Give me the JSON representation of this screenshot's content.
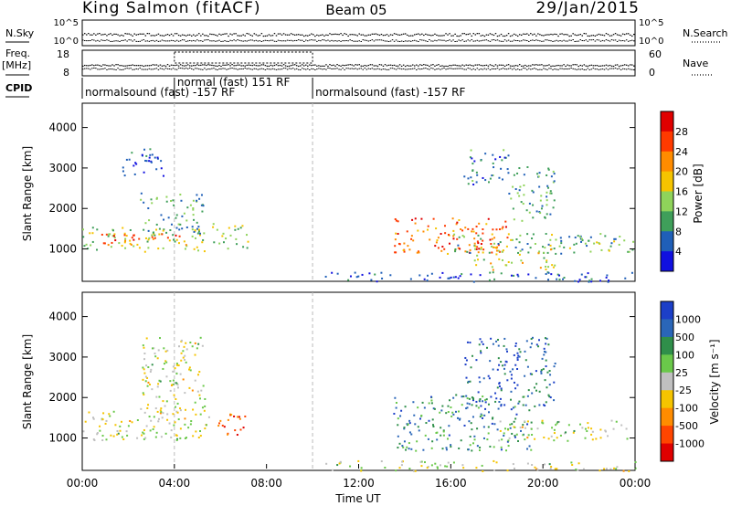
{
  "header": {
    "station": "King Salmon (fitACF)",
    "beam": "Beam 05",
    "date": "29/Jan/2015"
  },
  "status_panels": {
    "nsky_label": "N.Sky",
    "nsky_ticks": [
      "10^5",
      "10^0"
    ],
    "nsearch_label": "N.Search",
    "nsearch_ticks": [
      "10^5",
      "10^0"
    ],
    "freq_label": "Freq.",
    "freq_unit": "[MHz]",
    "freq_ticks": [
      "18",
      "8"
    ],
    "nave_label": "Nave",
    "nave_ticks": [
      "60",
      "0"
    ],
    "cpid_label": "CPID",
    "cpid_segments": [
      {
        "label": "normalsound (fast) -157 RF",
        "start": 0.0,
        "end": 4.0
      },
      {
        "label": "normal (fast)  151 RF",
        "start": 4.0,
        "end": 10.0
      },
      {
        "label": "normalsound (fast) -157 RF",
        "start": 10.0,
        "end": 24.0
      }
    ]
  },
  "power_colorbar": {
    "label": "Power [dB]",
    "ticks": [
      "28",
      "24",
      "20",
      "16",
      "12",
      "8",
      "4"
    ],
    "colors": [
      "#e00000",
      "#ff3a00",
      "#ff8c00",
      "#f5c400",
      "#8fd35a",
      "#3f9f5a",
      "#1f5fb8",
      "#1010e0"
    ]
  },
  "velocity_colorbar": {
    "label": "Velocity [m s⁻¹]",
    "ticks": [
      "1000",
      "500",
      "100",
      "25",
      "-25",
      "-100",
      "-500",
      "-1000"
    ],
    "colors": [
      "#1c3fc8",
      "#2a66b8",
      "#2f8f4a",
      "#6ac84a",
      "#c0c0c0",
      "#f5c400",
      "#ff8c00",
      "#ff4500",
      "#e00000"
    ]
  },
  "chart_data": [
    {
      "type": "heatmap",
      "name": "Power range-time plot",
      "ylabel": "Slant Range [km]",
      "xlabel": "Time UT",
      "xlim": [
        0,
        24
      ],
      "ylim": [
        200,
        4600
      ],
      "x_ticks": [
        "00:00",
        "04:00",
        "08:00",
        "12:00",
        "16:00",
        "20:00",
        "00:00"
      ],
      "y_ticks": [
        1000,
        2000,
        3000,
        4000
      ],
      "colorbar": "Power [dB]",
      "blobs": [
        {
          "t0": 0.0,
          "t1": 5.5,
          "r0": 950,
          "r1": 1550,
          "level": 0.45
        },
        {
          "t0": 0.4,
          "t1": 4.5,
          "r0": 1100,
          "r1": 1400,
          "level": 0.75
        },
        {
          "t0": 2.5,
          "t1": 5.3,
          "r0": 1400,
          "r1": 2400,
          "level": 0.3
        },
        {
          "t0": 1.5,
          "t1": 3.5,
          "r0": 2800,
          "r1": 3500,
          "level": 0.2
        },
        {
          "t0": 5.6,
          "t1": 7.2,
          "r0": 1000,
          "r1": 1650,
          "level": 0.45
        },
        {
          "t0": 13.5,
          "t1": 18.5,
          "r0": 900,
          "r1": 1800,
          "level": 0.75
        },
        {
          "t0": 15.0,
          "t1": 17.5,
          "r0": 1000,
          "r1": 1200,
          "level": 0.95
        },
        {
          "t0": 16.0,
          "t1": 24.0,
          "r0": 900,
          "r1": 1400,
          "level": 0.35
        },
        {
          "t0": 17.0,
          "t1": 20.5,
          "r0": 500,
          "r1": 1100,
          "level": 0.5
        },
        {
          "t0": 16.5,
          "t1": 18.5,
          "r0": 2600,
          "r1": 3500,
          "level": 0.25
        },
        {
          "t0": 18.5,
          "t1": 20.5,
          "r0": 1700,
          "r1": 3100,
          "level": 0.3
        },
        {
          "t0": 10.5,
          "t1": 24.0,
          "r0": 200,
          "r1": 450,
          "level": 0.15
        }
      ]
    },
    {
      "type": "heatmap",
      "name": "Velocity range-time plot",
      "ylabel": "Slant Range [km]",
      "xlabel": "Time UT",
      "xlim": [
        0,
        24
      ],
      "ylim": [
        200,
        4600
      ],
      "x_ticks": [
        "00:00",
        "04:00",
        "08:00",
        "12:00",
        "16:00",
        "20:00",
        "00:00"
      ],
      "y_ticks": [
        1000,
        2000,
        3000,
        4000
      ],
      "colorbar": "Velocity [m s⁻¹]",
      "blobs": [
        {
          "t0": 0.0,
          "t1": 5.5,
          "r0": 950,
          "r1": 1800,
          "level": 0.5
        },
        {
          "t0": 2.5,
          "t1": 5.3,
          "r0": 1600,
          "r1": 3500,
          "level": 0.5
        },
        {
          "t0": 5.6,
          "t1": 7.2,
          "r0": 1100,
          "r1": 1650,
          "level": 0.8
        },
        {
          "t0": 13.5,
          "t1": 19.5,
          "r0": 700,
          "r1": 2100,
          "level": 0.25
        },
        {
          "t0": 16.5,
          "t1": 20.5,
          "r0": 1800,
          "r1": 3500,
          "level": 0.15
        },
        {
          "t0": 18.0,
          "t1": 24.0,
          "r0": 950,
          "r1": 1450,
          "level": 0.5
        },
        {
          "t0": 10.5,
          "t1": 24.0,
          "r0": 200,
          "r1": 450,
          "level": 0.5
        }
      ]
    }
  ]
}
